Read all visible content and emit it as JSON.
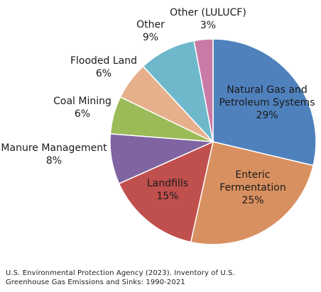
{
  "chart_data": {
    "type": "pie",
    "title": "",
    "start_angle_deg": 0,
    "direction": "clockwise",
    "slices": [
      {
        "label": "Natural Gas and Petroleum Systems",
        "label_lines": [
          "Natural Gas and",
          "Petroleum Systems"
        ],
        "value": 29,
        "value_label": "29%",
        "color": "#4f81bd",
        "label_placement": "inside"
      },
      {
        "label": "Enteric Fermentation",
        "label_lines": [
          "Enteric",
          "Fermentation"
        ],
        "value": 25,
        "value_label": "25%",
        "color": "#d99060",
        "label_placement": "inside"
      },
      {
        "label": "Landfills",
        "label_lines": [
          "Landfills"
        ],
        "value": 15,
        "value_label": "15%",
        "color": "#c0504d",
        "label_placement": "inside"
      },
      {
        "label": "Manure Management",
        "label_lines": [
          "Manure Management"
        ],
        "value": 8,
        "value_label": "8%",
        "color": "#8064a2",
        "label_placement": "outside"
      },
      {
        "label": "Coal Mining",
        "label_lines": [
          "Coal Mining"
        ],
        "value": 6,
        "value_label": "6%",
        "color": "#9bbb59",
        "label_placement": "outside"
      },
      {
        "label": "Flooded Land",
        "label_lines": [
          "Flooded Land"
        ],
        "value": 6,
        "value_label": "6%",
        "color": "#e6b08c",
        "label_placement": "outside"
      },
      {
        "label": "Other",
        "label_lines": [
          "Other"
        ],
        "value": 9,
        "value_label": "9%",
        "color": "#6fb8cc",
        "label_placement": "outside"
      },
      {
        "label": "Other (LULUCF)",
        "label_lines": [
          "Other (LULUCF)"
        ],
        "value": 3,
        "value_label": "3%",
        "color": "#c97ba6",
        "label_placement": "outside"
      }
    ],
    "legend": "none",
    "border_color": "#ffffff"
  },
  "source": {
    "line1": "U.S. Environmental Protection Agency (2023). Inventory of U.S.",
    "line2": "Greenhouse Gas Emissions and Sinks: 1990-2021"
  }
}
